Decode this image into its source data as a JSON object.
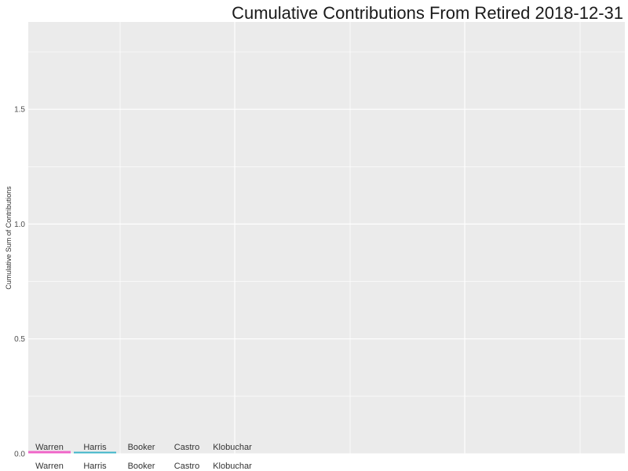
{
  "chart_data": {
    "type": "bar",
    "title": "Cumulative Contributions From  Retired  2018-12-31",
    "xlabel": "",
    "ylabel": "Cumulative Sum of Contributions",
    "ylim": [
      0,
      1.88
    ],
    "yticks": [
      0.0,
      0.5,
      1.0,
      1.5
    ],
    "ytick_labels": [
      "0.0",
      "0.5",
      "1.0",
      "1.5"
    ],
    "grid": true,
    "legend": "none",
    "categories": [
      "Warren",
      "Harris",
      "Booker",
      "Castro",
      "Klobuchar"
    ],
    "values": [
      0.01,
      0.005,
      0,
      0,
      0
    ],
    "colors": [
      "#f064c8",
      "#3cb4c8",
      "#999999",
      "#999999",
      "#999999"
    ],
    "panel_bg": "#ebebeb",
    "grid_color": "#ffffff"
  }
}
